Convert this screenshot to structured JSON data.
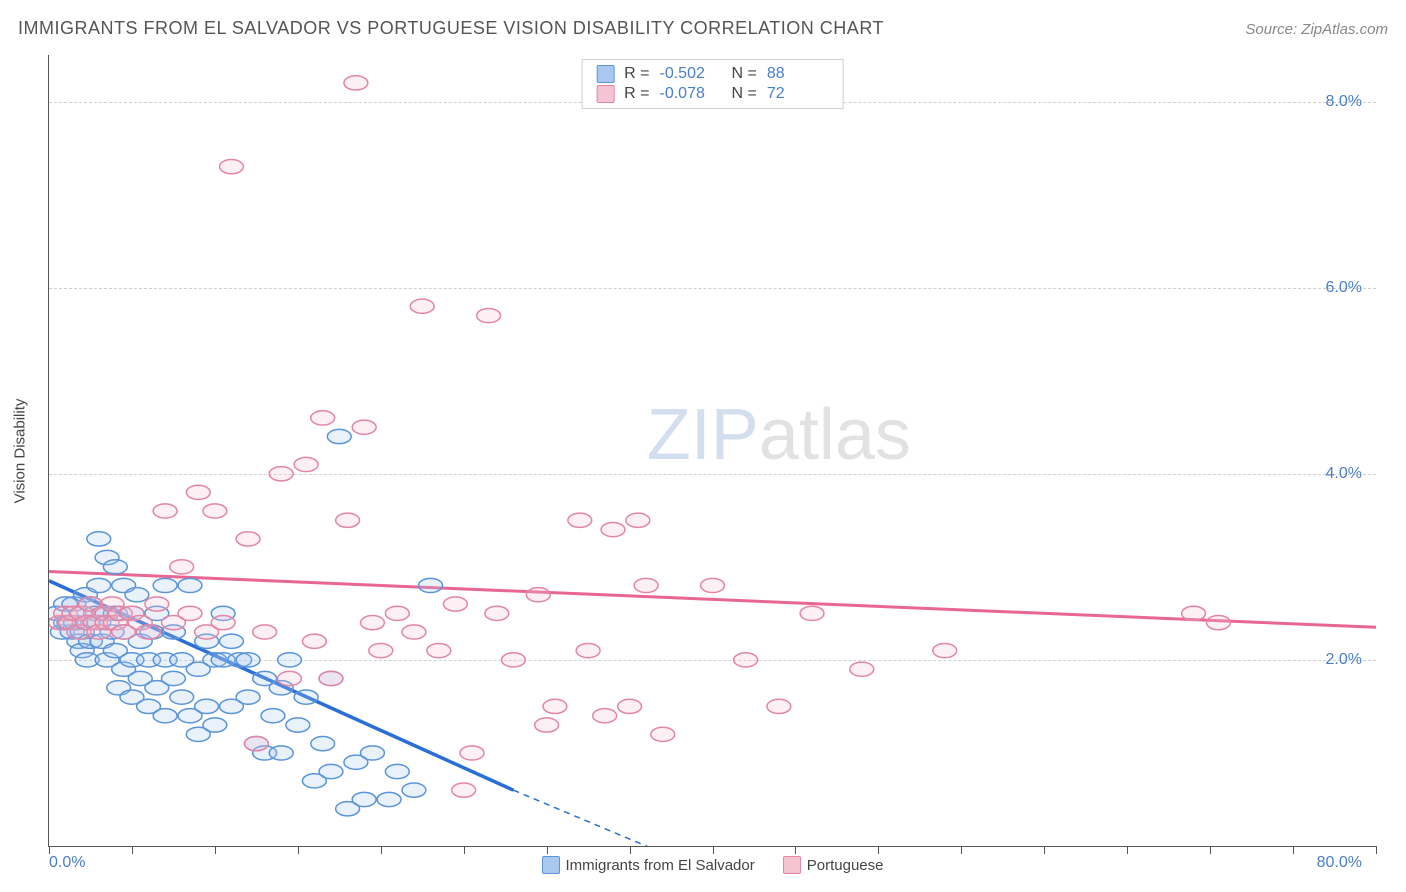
{
  "header": {
    "title": "IMMIGRANTS FROM EL SALVADOR VS PORTUGUESE VISION DISABILITY CORRELATION CHART",
    "source_prefix": "Source: ",
    "source_name": "ZipAtlas.com"
  },
  "watermark": {
    "zip": "ZIP",
    "atlas": "atlas"
  },
  "chart": {
    "type": "scatter",
    "y_label": "Vision Disability",
    "xlim": [
      0,
      80
    ],
    "ylim": [
      0,
      8.5
    ],
    "x_start_label": "0.0%",
    "x_end_label": "80.0%",
    "y_ticks": [
      {
        "value": 2.0,
        "label": "2.0%"
      },
      {
        "value": 4.0,
        "label": "4.0%"
      },
      {
        "value": 6.0,
        "label": "6.0%"
      },
      {
        "value": 8.0,
        "label": "8.0%"
      }
    ],
    "x_tick_spacing": 5,
    "marker_radius": 9,
    "colors": {
      "series1_fill": "#a9c8ef",
      "series1_stroke": "#5a94da",
      "series2_fill": "#f5c4d3",
      "series2_stroke": "#e485a5",
      "trend1": "#2a6fd6",
      "trend2": "#e86693",
      "axis_text": "#4a7ec9",
      "grid": "#d0d0d0"
    },
    "legend_top": [
      {
        "swatch_fill": "#a9c8ef",
        "swatch_stroke": "#5a94da",
        "r_label": "R =",
        "r_value": "-0.502",
        "n_label": "N =",
        "n_value": "88"
      },
      {
        "swatch_fill": "#f5c4d3",
        "swatch_stroke": "#e485a5",
        "r_label": "R =",
        "r_value": "-0.078",
        "n_label": "N =",
        "n_value": "72"
      }
    ],
    "legend_bottom": [
      {
        "swatch_fill": "#a9c8ef",
        "swatch_stroke": "#5a94da",
        "label": "Immigrants from El Salvador"
      },
      {
        "swatch_fill": "#f5c4d3",
        "swatch_stroke": "#e485a5",
        "label": "Portuguese"
      }
    ],
    "trend_lines": {
      "series1": {
        "x1": 0,
        "y1": 2.85,
        "x_solid_end": 28,
        "y_solid_end": 0.6,
        "x2": 40,
        "y2": -0.3
      },
      "series2": {
        "x1": 0,
        "y1": 2.95,
        "x2": 80,
        "y2": 2.35
      }
    },
    "series": [
      {
        "name": "Immigrants from El Salvador",
        "color_key": "series1",
        "points": [
          [
            0.5,
            2.5
          ],
          [
            0.8,
            2.3
          ],
          [
            1.0,
            2.6
          ],
          [
            1.0,
            2.4
          ],
          [
            1.2,
            2.4
          ],
          [
            1.4,
            2.3
          ],
          [
            1.5,
            2.6
          ],
          [
            1.6,
            2.4
          ],
          [
            1.8,
            2.2
          ],
          [
            2.0,
            2.5
          ],
          [
            2.0,
            2.3
          ],
          [
            2.0,
            2.1
          ],
          [
            2.2,
            2.7
          ],
          [
            2.3,
            2.0
          ],
          [
            2.4,
            2.4
          ],
          [
            2.5,
            2.6
          ],
          [
            2.5,
            2.2
          ],
          [
            2.8,
            2.5
          ],
          [
            3.0,
            3.3
          ],
          [
            3.0,
            2.8
          ],
          [
            3.0,
            2.4
          ],
          [
            3.2,
            2.2
          ],
          [
            3.5,
            3.1
          ],
          [
            3.5,
            2.5
          ],
          [
            3.5,
            2.0
          ],
          [
            3.8,
            2.3
          ],
          [
            4.0,
            3.0
          ],
          [
            4.0,
            2.5
          ],
          [
            4.0,
            2.1
          ],
          [
            4.2,
            1.7
          ],
          [
            4.5,
            2.8
          ],
          [
            4.5,
            2.3
          ],
          [
            4.5,
            1.9
          ],
          [
            5.0,
            2.5
          ],
          [
            5.0,
            2.0
          ],
          [
            5.0,
            1.6
          ],
          [
            5.3,
            2.7
          ],
          [
            5.5,
            2.2
          ],
          [
            5.5,
            1.8
          ],
          [
            6.0,
            2.0
          ],
          [
            6.0,
            1.5
          ],
          [
            6.2,
            2.3
          ],
          [
            6.5,
            1.7
          ],
          [
            6.5,
            2.5
          ],
          [
            7.0,
            2.8
          ],
          [
            7.0,
            2.0
          ],
          [
            7.0,
            1.4
          ],
          [
            7.5,
            1.8
          ],
          [
            7.5,
            2.3
          ],
          [
            8.0,
            1.6
          ],
          [
            8.0,
            2.0
          ],
          [
            8.5,
            1.4
          ],
          [
            8.5,
            2.8
          ],
          [
            9.0,
            1.9
          ],
          [
            9.0,
            1.2
          ],
          [
            9.5,
            2.2
          ],
          [
            9.5,
            1.5
          ],
          [
            10.0,
            2.0
          ],
          [
            10.0,
            1.3
          ],
          [
            10.5,
            2.5
          ],
          [
            10.5,
            2.0
          ],
          [
            11.0,
            2.2
          ],
          [
            11.0,
            1.5
          ],
          [
            11.5,
            2.0
          ],
          [
            12.0,
            1.6
          ],
          [
            12.0,
            2.0
          ],
          [
            12.5,
            1.1
          ],
          [
            13.0,
            1.8
          ],
          [
            13.0,
            1.0
          ],
          [
            13.5,
            1.4
          ],
          [
            14.0,
            1.7
          ],
          [
            14.0,
            1.0
          ],
          [
            14.5,
            2.0
          ],
          [
            15.0,
            1.3
          ],
          [
            15.5,
            1.6
          ],
          [
            16.0,
            0.7
          ],
          [
            16.5,
            1.1
          ],
          [
            17.0,
            1.8
          ],
          [
            17.0,
            0.8
          ],
          [
            17.5,
            4.4
          ],
          [
            18.0,
            0.4
          ],
          [
            18.5,
            0.9
          ],
          [
            19.0,
            0.5
          ],
          [
            19.5,
            1.0
          ],
          [
            20.5,
            0.5
          ],
          [
            21.0,
            0.8
          ],
          [
            22.0,
            0.6
          ],
          [
            23.0,
            2.8
          ]
        ]
      },
      {
        "name": "Portuguese",
        "color_key": "series2",
        "points": [
          [
            0.7,
            2.4
          ],
          [
            1.0,
            2.5
          ],
          [
            1.3,
            2.4
          ],
          [
            1.5,
            2.5
          ],
          [
            1.8,
            2.3
          ],
          [
            2.0,
            2.5
          ],
          [
            2.3,
            2.4
          ],
          [
            2.5,
            2.6
          ],
          [
            2.8,
            2.4
          ],
          [
            3.0,
            2.3
          ],
          [
            3.3,
            2.5
          ],
          [
            3.5,
            2.4
          ],
          [
            3.8,
            2.6
          ],
          [
            4.0,
            2.4
          ],
          [
            4.3,
            2.5
          ],
          [
            4.5,
            2.3
          ],
          [
            5.0,
            2.5
          ],
          [
            5.5,
            2.4
          ],
          [
            6.0,
            2.3
          ],
          [
            6.5,
            2.6
          ],
          [
            7.0,
            3.6
          ],
          [
            7.5,
            2.4
          ],
          [
            8.0,
            3.0
          ],
          [
            8.5,
            2.5
          ],
          [
            9.0,
            3.8
          ],
          [
            9.5,
            2.3
          ],
          [
            10.0,
            3.6
          ],
          [
            10.5,
            2.4
          ],
          [
            11.0,
            7.3
          ],
          [
            12.0,
            3.3
          ],
          [
            12.5,
            1.1
          ],
          [
            13.0,
            2.3
          ],
          [
            14.0,
            4.0
          ],
          [
            14.5,
            1.8
          ],
          [
            15.5,
            4.1
          ],
          [
            16.0,
            2.2
          ],
          [
            16.5,
            4.6
          ],
          [
            17.0,
            1.8
          ],
          [
            18.0,
            3.5
          ],
          [
            18.5,
            8.2
          ],
          [
            19.0,
            4.5
          ],
          [
            19.5,
            2.4
          ],
          [
            20.0,
            2.1
          ],
          [
            21.0,
            2.5
          ],
          [
            22.0,
            2.3
          ],
          [
            22.5,
            5.8
          ],
          [
            23.5,
            2.1
          ],
          [
            24.5,
            2.6
          ],
          [
            25.0,
            0.6
          ],
          [
            25.5,
            1.0
          ],
          [
            26.5,
            5.7
          ],
          [
            27.0,
            2.5
          ],
          [
            28.0,
            2.0
          ],
          [
            29.5,
            2.7
          ],
          [
            30.0,
            1.3
          ],
          [
            30.5,
            1.5
          ],
          [
            32.0,
            3.5
          ],
          [
            32.5,
            2.1
          ],
          [
            33.5,
            1.4
          ],
          [
            34.0,
            3.4
          ],
          [
            35.0,
            1.5
          ],
          [
            35.5,
            3.5
          ],
          [
            36.0,
            2.8
          ],
          [
            37.0,
            1.2
          ],
          [
            40.0,
            2.8
          ],
          [
            42.0,
            2.0
          ],
          [
            44.0,
            1.5
          ],
          [
            46.0,
            2.5
          ],
          [
            49.0,
            1.9
          ],
          [
            54.0,
            2.1
          ],
          [
            69.0,
            2.5
          ],
          [
            70.5,
            2.4
          ]
        ]
      }
    ]
  }
}
